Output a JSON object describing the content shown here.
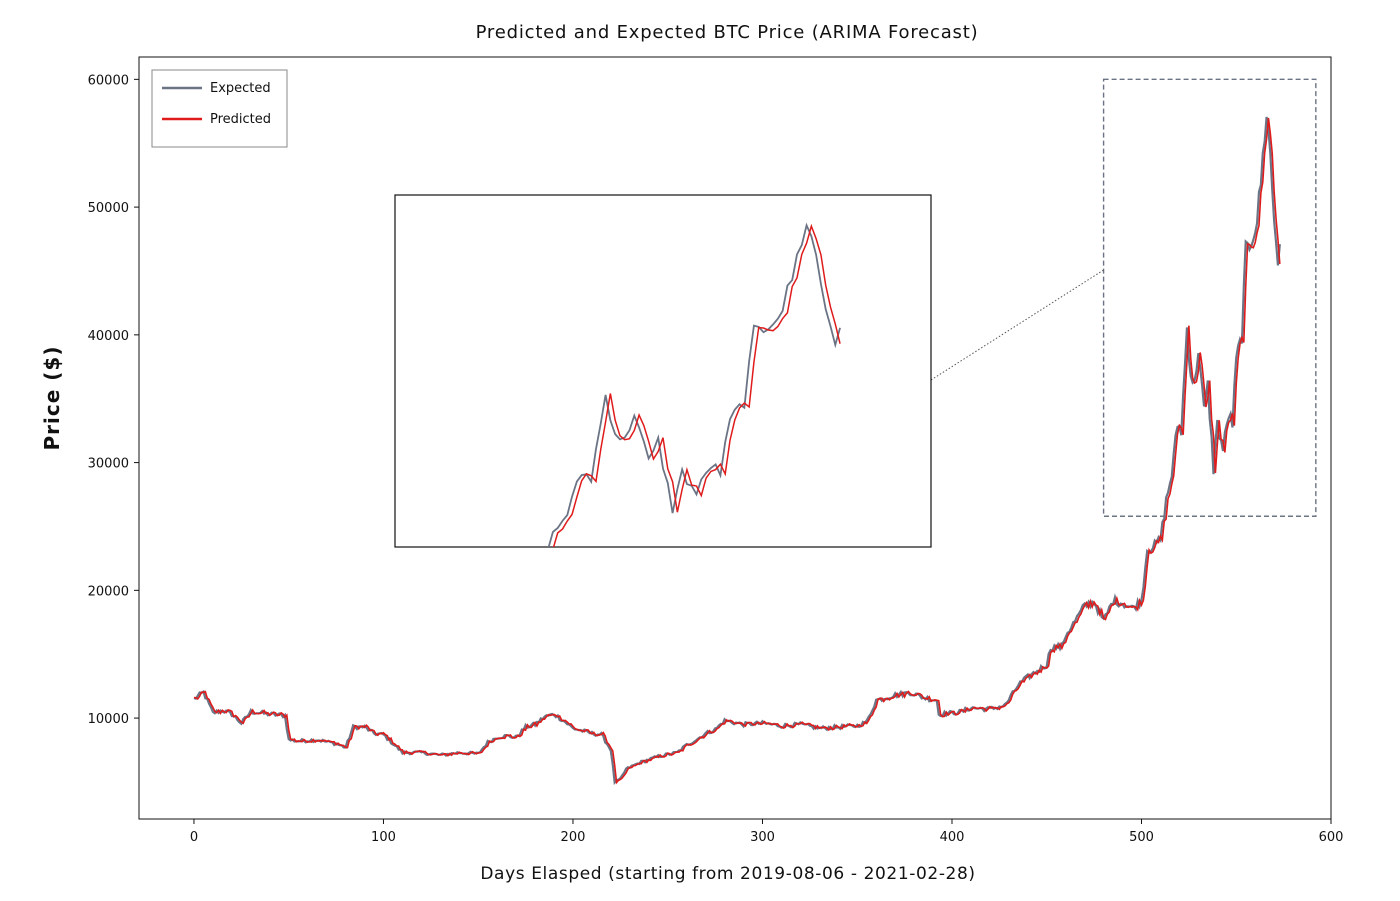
{
  "chart_data": {
    "type": "line",
    "title": "Predicted and Expected BTC Price (ARIMA Forecast)",
    "xlabel": "Days Elasped (starting from 2019-08-06 - 2021-02-28)",
    "ylabel": "Price ($)",
    "xlim": [
      -29,
      600
    ],
    "ylim": [
      2100,
      61750
    ],
    "xticks": [
      0,
      100,
      200,
      300,
      400,
      500,
      600
    ],
    "xtick_labels": [
      "0",
      "100",
      "200",
      "300",
      "400",
      "500",
      "600"
    ],
    "yticks": [
      10000,
      20000,
      30000,
      40000,
      50000,
      60000
    ],
    "ytick_labels": [
      "10000",
      "20000",
      "30000",
      "40000",
      "50000",
      "60000"
    ],
    "grid": false,
    "legend_position": "top-left",
    "series": [
      {
        "name": "Expected",
        "color": "#6b7485"
      },
      {
        "name": "Predicted",
        "color": "#e01b1b"
      }
    ],
    "keypoints": [
      [
        0,
        11500
      ],
      [
        5,
        12000
      ],
      [
        10,
        10400
      ],
      [
        15,
        10600
      ],
      [
        20,
        10300
      ],
      [
        25,
        9600
      ],
      [
        30,
        10500
      ],
      [
        40,
        10300
      ],
      [
        48,
        10200
      ],
      [
        50,
        8300
      ],
      [
        55,
        8200
      ],
      [
        65,
        8300
      ],
      [
        75,
        8000
      ],
      [
        80,
        7700
      ],
      [
        84,
        9300
      ],
      [
        90,
        9300
      ],
      [
        95,
        8800
      ],
      [
        100,
        8700
      ],
      [
        105,
        8000
      ],
      [
        110,
        7300
      ],
      [
        120,
        7300
      ],
      [
        130,
        7100
      ],
      [
        135,
        7200
      ],
      [
        140,
        7300
      ],
      [
        150,
        7200
      ],
      [
        155,
        8100
      ],
      [
        160,
        8500
      ],
      [
        165,
        8600
      ],
      [
        170,
        8500
      ],
      [
        175,
        9300
      ],
      [
        180,
        9500
      ],
      [
        185,
        10100
      ],
      [
        190,
        10300
      ],
      [
        195,
        9800
      ],
      [
        200,
        9200
      ],
      [
        210,
        8800
      ],
      [
        215,
        8700
      ],
      [
        220,
        7500
      ],
      [
        222,
        5000
      ],
      [
        225,
        5200
      ],
      [
        228,
        6000
      ],
      [
        235,
        6500
      ],
      [
        245,
        7000
      ],
      [
        255,
        7300
      ],
      [
        260,
        7900
      ],
      [
        265,
        8300
      ],
      [
        270,
        8800
      ],
      [
        275,
        9100
      ],
      [
        280,
        9800
      ],
      [
        290,
        9500
      ],
      [
        300,
        9600
      ],
      [
        310,
        9400
      ],
      [
        320,
        9500
      ],
      [
        330,
        9200
      ],
      [
        340,
        9300
      ],
      [
        350,
        9400
      ],
      [
        355,
        9700
      ],
      [
        360,
        11400
      ],
      [
        365,
        11600
      ],
      [
        370,
        11800
      ],
      [
        378,
        12000
      ],
      [
        385,
        11600
      ],
      [
        392,
        11400
      ],
      [
        393,
        10300
      ],
      [
        400,
        10400
      ],
      [
        405,
        10500
      ],
      [
        410,
        10800
      ],
      [
        420,
        10700
      ],
      [
        428,
        11000
      ],
      [
        432,
        11900
      ],
      [
        435,
        12600
      ],
      [
        440,
        13200
      ],
      [
        450,
        14200
      ],
      [
        452,
        15500
      ],
      [
        458,
        15600
      ],
      [
        460,
        16500
      ],
      [
        465,
        17600
      ],
      [
        470,
        18800
      ],
      [
        475,
        19100
      ],
      [
        480,
        17600
      ],
      [
        485,
        19200
      ],
      [
        490,
        19000
      ],
      [
        495,
        18600
      ],
      [
        500,
        19200
      ],
      [
        503,
        23200
      ],
      [
        507,
        23500
      ],
      [
        510,
        24000
      ],
      [
        513,
        27000
      ],
      [
        516,
        29100
      ],
      [
        519,
        33000
      ],
      [
        521,
        32500
      ],
      [
        524,
        40500
      ],
      [
        526,
        37000
      ],
      [
        528,
        36000
      ],
      [
        530,
        39000
      ],
      [
        533,
        34000
      ],
      [
        535,
        36000
      ],
      [
        538,
        29500
      ],
      [
        540,
        33000
      ],
      [
        543,
        31000
      ],
      [
        546,
        33800
      ],
      [
        548,
        33000
      ],
      [
        550,
        38000
      ],
      [
        553,
        40000
      ],
      [
        555,
        46500
      ],
      [
        557,
        47000
      ],
      [
        559,
        48000
      ],
      [
        561,
        49000
      ],
      [
        563,
        52000
      ],
      [
        566,
        57500
      ],
      [
        568,
        54000
      ],
      [
        570,
        49000
      ],
      [
        572,
        45800
      ],
      [
        573,
        47500
      ]
    ],
    "inset_zoom_x": [
      480,
      592
    ],
    "inset_zoom_y": [
      25800,
      60000
    ]
  }
}
